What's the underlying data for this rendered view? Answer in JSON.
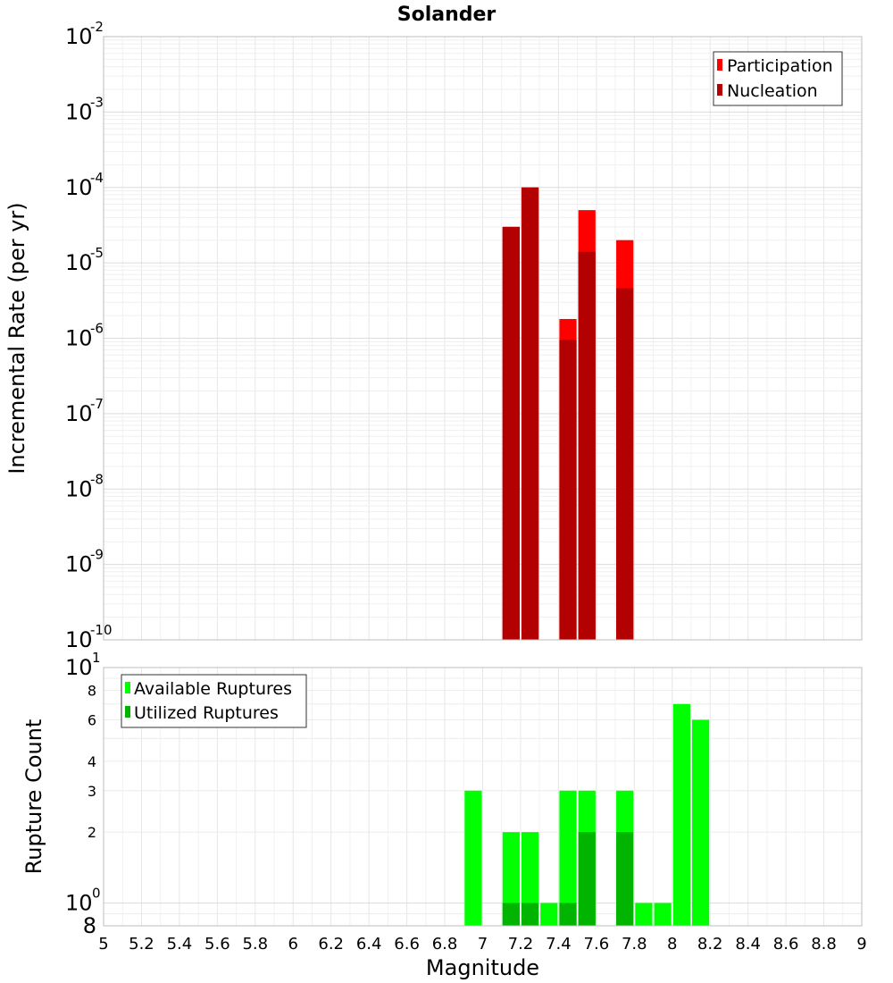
{
  "chart_data": [
    {
      "type": "bar",
      "title": "Solander",
      "ylabel": "Incremental Rate (per yr)",
      "yscale": "log",
      "ylim": [
        1e-10,
        0.01
      ],
      "xlim": [
        5,
        9
      ],
      "y_ticks": [
        {
          "base": "10",
          "exp": "-10",
          "value": 1e-10
        },
        {
          "base": "10",
          "exp": "-9",
          "value": 1e-09
        },
        {
          "base": "10",
          "exp": "-8",
          "value": 1e-08
        },
        {
          "base": "10",
          "exp": "-7",
          "value": 1e-07
        },
        {
          "base": "10",
          "exp": "-6",
          "value": 1e-06
        },
        {
          "base": "10",
          "exp": "-5",
          "value": 1e-05
        },
        {
          "base": "10",
          "exp": "-4",
          "value": 0.0001
        },
        {
          "base": "10",
          "exp": "-3",
          "value": 0.001
        },
        {
          "base": "10",
          "exp": "-2",
          "value": 0.01
        }
      ],
      "grid": true,
      "legend_position": "top-right",
      "series": [
        {
          "name": "Participation",
          "color": "#ff0000",
          "x": [
            7.15,
            7.25,
            7.45,
            7.55,
            7.75
          ],
          "values": [
            3e-05,
            0.0001,
            1.8e-06,
            5e-05,
            2e-05
          ]
        },
        {
          "name": "Nucleation",
          "color": "#b30000",
          "x": [
            7.15,
            7.25,
            7.45,
            7.55,
            7.75
          ],
          "values": [
            3e-05,
            0.0001,
            9.5e-07,
            1.4e-05,
            4.6e-06
          ]
        }
      ]
    },
    {
      "type": "bar",
      "ylabel": "Rupture Count",
      "xlabel": "Magnitude",
      "yscale": "log",
      "ylim": [
        0.8,
        10
      ],
      "xlim": [
        5,
        9
      ],
      "x_ticks": [
        "5",
        "5.2",
        "5.4",
        "5.6",
        "5.8",
        "6",
        "6.2",
        "6.4",
        "6.6",
        "6.8",
        "7",
        "7.2",
        "7.4",
        "7.6",
        "7.8",
        "8",
        "8.2",
        "8.4",
        "8.6",
        "8.8",
        "9"
      ],
      "y_ticks_minor": [
        {
          "label": "2",
          "value": 2
        },
        {
          "label": "3",
          "value": 3
        },
        {
          "label": "4",
          "value": 4
        },
        {
          "label": "6",
          "value": 6
        },
        {
          "label": "8",
          "value": 8
        }
      ],
      "y_ticks_major": [
        {
          "base": "10",
          "exp": "0",
          "value": 1
        },
        {
          "base": "10",
          "exp": "1",
          "value": 10
        }
      ],
      "y_bottom_label": "8",
      "grid": true,
      "legend_position": "top-left",
      "series": [
        {
          "name": "Available Ruptures",
          "color": "#00ff00",
          "x": [
            6.95,
            7.15,
            7.25,
            7.35,
            7.45,
            7.55,
            7.75,
            7.85,
            7.95,
            8.05,
            8.15
          ],
          "values": [
            3,
            2,
            2,
            1,
            3,
            3,
            3,
            1,
            1,
            7,
            6
          ]
        },
        {
          "name": "Utilized Ruptures",
          "color": "#00b400",
          "x": [
            7.15,
            7.25,
            7.45,
            7.55,
            7.75
          ],
          "values": [
            1,
            1,
            1,
            2,
            2
          ]
        }
      ]
    }
  ]
}
